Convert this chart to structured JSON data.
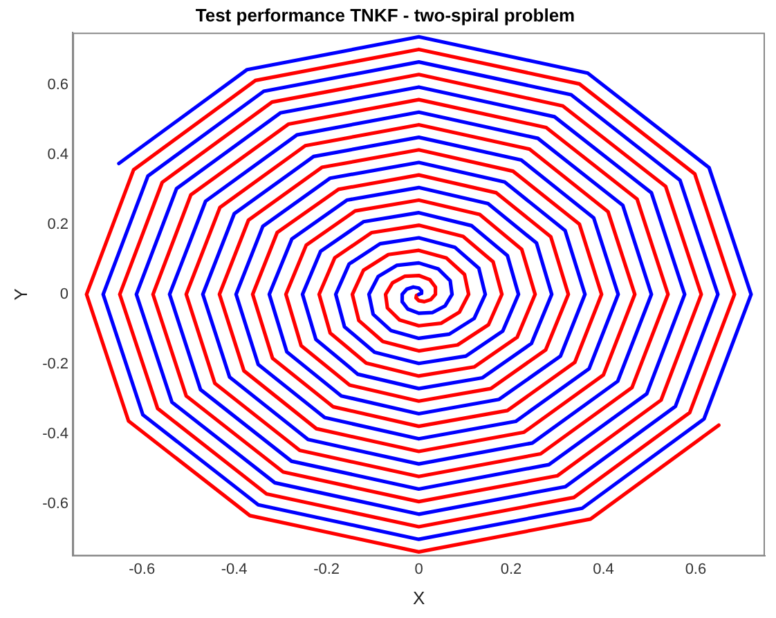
{
  "chart_data": {
    "type": "line",
    "title": "Test performance TNKF - two-spiral problem",
    "xlabel": "X",
    "ylabel": "Y",
    "xlim": [
      -0.75,
      0.75
    ],
    "ylim": [
      -0.75,
      0.75
    ],
    "xticks": [
      -0.6,
      -0.4,
      -0.2,
      0,
      0.2,
      0.4,
      0.6
    ],
    "yticks": [
      -0.6,
      -0.4,
      -0.2,
      0,
      0.2,
      0.4,
      0.6
    ],
    "grid": false,
    "legend": false,
    "series": [
      {
        "color": "#0000ff",
        "x": [
          0,
          0.005,
          0.006,
          0,
          -0.012,
          -0.026,
          -0.036,
          -0.036,
          -0.024,
          0,
          0.03,
          0.057,
          0.072,
          0.068,
          0.042,
          0,
          -0.048,
          -0.088,
          -0.108,
          -0.099,
          -0.06,
          0,
          0.066,
          0.12,
          0.144,
          0.13,
          0.078,
          0,
          -0.084,
          -0.151,
          -0.18,
          -0.161,
          -0.096,
          0,
          0.102,
          0.182,
          0.216,
          0.192,
          0.114,
          0,
          -0.12,
          -0.213,
          -0.252,
          -0.223,
          -0.132,
          0,
          0.138,
          0.244,
          0.288,
          0.255,
          0.15,
          0,
          -0.156,
          -0.275,
          -0.324,
          -0.286,
          -0.168,
          0,
          0.174,
          0.307,
          0.36,
          0.317,
          0.186,
          0,
          -0.192,
          -0.338,
          -0.396,
          -0.348,
          -0.204,
          0,
          0.21,
          0.369,
          0.432,
          0.379,
          0.222,
          0,
          -0.228,
          -0.4,
          -0.468,
          -0.41,
          -0.24,
          0,
          0.246,
          0.431,
          0.504,
          0.442,
          0.258,
          0,
          -0.264,
          -0.462,
          -0.54,
          -0.473,
          -0.276,
          0,
          0.282,
          0.494,
          0.576,
          0.504,
          0.294,
          0,
          -0.3,
          -0.525,
          -0.612,
          -0.535,
          -0.312,
          0,
          0.318,
          0.556,
          0.648,
          0.566,
          0.33,
          0,
          -0.336,
          -0.587,
          -0.684,
          -0.598,
          -0.348,
          0,
          0.354,
          0.618,
          0.72,
          0.629,
          0.366,
          0,
          -0.372,
          -0.65
        ],
        "values": [
          0,
          0.003,
          0.01,
          0.018,
          0.021,
          0.015,
          0,
          -0.021,
          -0.042,
          -0.054,
          -0.052,
          -0.033,
          0,
          0.039,
          0.073,
          0.09,
          0.083,
          0.051,
          0,
          -0.057,
          -0.104,
          -0.126,
          -0.114,
          -0.069,
          0,
          0.075,
          0.135,
          0.162,
          0.145,
          0.087,
          0,
          -0.093,
          -0.166,
          -0.198,
          -0.177,
          -0.105,
          0,
          0.111,
          0.197,
          0.234,
          0.208,
          0.123,
          0,
          -0.129,
          -0.229,
          -0.27,
          -0.239,
          -0.141,
          0,
          0.147,
          0.26,
          0.306,
          0.27,
          0.159,
          0,
          -0.165,
          -0.291,
          -0.342,
          -0.301,
          -0.177,
          0,
          0.183,
          0.322,
          0.378,
          0.333,
          0.195,
          0,
          -0.201,
          -0.353,
          -0.414,
          -0.364,
          -0.213,
          0,
          0.219,
          0.385,
          0.45,
          0.395,
          0.231,
          0,
          -0.237,
          -0.416,
          -0.486,
          -0.426,
          -0.249,
          0,
          0.255,
          0.447,
          0.522,
          0.457,
          0.267,
          0,
          -0.273,
          -0.478,
          -0.558,
          -0.488,
          -0.285,
          0,
          0.291,
          0.509,
          0.594,
          0.52,
          0.303,
          0,
          -0.309,
          -0.54,
          -0.63,
          -0.551,
          -0.321,
          0,
          0.327,
          0.572,
          0.666,
          0.582,
          0.339,
          0,
          -0.345,
          -0.603,
          -0.702,
          -0.613,
          -0.357,
          0,
          0.363,
          0.634,
          0.738,
          0.644,
          0.375
        ]
      },
      {
        "color": "#ff0000",
        "x": [
          0,
          -0.005,
          -0.006,
          0,
          0.012,
          0.026,
          0.036,
          0.036,
          0.024,
          0,
          -0.03,
          -0.057,
          -0.072,
          -0.068,
          -0.042,
          0,
          0.048,
          0.088,
          0.108,
          0.099,
          0.06,
          0,
          -0.066,
          -0.12,
          -0.144,
          -0.13,
          -0.078,
          0,
          0.084,
          0.151,
          0.18,
          0.161,
          0.096,
          0,
          -0.102,
          -0.182,
          -0.216,
          -0.192,
          -0.114,
          0,
          0.12,
          0.213,
          0.252,
          0.223,
          0.132,
          0,
          -0.138,
          -0.244,
          -0.288,
          -0.255,
          -0.15,
          0,
          0.156,
          0.275,
          0.324,
          0.286,
          0.168,
          0,
          -0.174,
          -0.307,
          -0.36,
          -0.317,
          -0.186,
          0,
          0.192,
          0.338,
          0.396,
          0.348,
          0.204,
          0,
          -0.21,
          -0.369,
          -0.432,
          -0.379,
          -0.222,
          0,
          0.228,
          0.4,
          0.468,
          0.41,
          0.24,
          0,
          -0.246,
          -0.431,
          -0.504,
          -0.442,
          -0.258,
          0,
          0.264,
          0.462,
          0.54,
          0.473,
          0.276,
          0,
          -0.282,
          -0.494,
          -0.576,
          -0.504,
          -0.294,
          0,
          0.3,
          0.525,
          0.612,
          0.535,
          0.312,
          0,
          -0.318,
          -0.556,
          -0.648,
          -0.566,
          -0.33,
          0,
          0.336,
          0.587,
          0.684,
          0.598,
          0.348,
          0,
          -0.354,
          -0.618,
          -0.72,
          -0.629,
          -0.366,
          0,
          0.372,
          0.65
        ],
        "values": [
          0,
          -0.003,
          -0.01,
          -0.018,
          -0.021,
          -0.015,
          0,
          0.021,
          0.042,
          0.054,
          0.052,
          0.033,
          0,
          -0.039,
          -0.073,
          -0.09,
          -0.083,
          -0.051,
          0,
          0.057,
          0.104,
          0.126,
          0.114,
          0.069,
          0,
          -0.075,
          -0.135,
          -0.162,
          -0.145,
          -0.087,
          0,
          0.093,
          0.166,
          0.198,
          0.177,
          0.105,
          0,
          -0.111,
          -0.197,
          -0.234,
          -0.208,
          -0.123,
          0,
          0.129,
          0.229,
          0.27,
          0.239,
          0.141,
          0,
          -0.147,
          -0.26,
          -0.306,
          -0.27,
          -0.159,
          0,
          0.165,
          0.291,
          0.342,
          0.301,
          0.177,
          0,
          -0.183,
          -0.322,
          -0.378,
          -0.333,
          -0.195,
          0,
          0.201,
          0.353,
          0.414,
          0.364,
          0.213,
          0,
          -0.219,
          -0.385,
          -0.45,
          -0.395,
          -0.231,
          0,
          0.237,
          0.416,
          0.486,
          0.426,
          0.249,
          0,
          -0.255,
          -0.447,
          -0.522,
          -0.457,
          -0.267,
          0,
          0.273,
          0.478,
          0.558,
          0.488,
          0.285,
          0,
          -0.291,
          -0.509,
          -0.594,
          -0.52,
          -0.303,
          0,
          0.309,
          0.54,
          0.63,
          0.551,
          0.321,
          0,
          -0.327,
          -0.572,
          -0.666,
          -0.582,
          -0.339,
          0,
          0.345,
          0.603,
          0.702,
          0.613,
          0.357,
          0,
          -0.363,
          -0.634,
          -0.738,
          -0.644,
          -0.375
        ]
      }
    ]
  }
}
